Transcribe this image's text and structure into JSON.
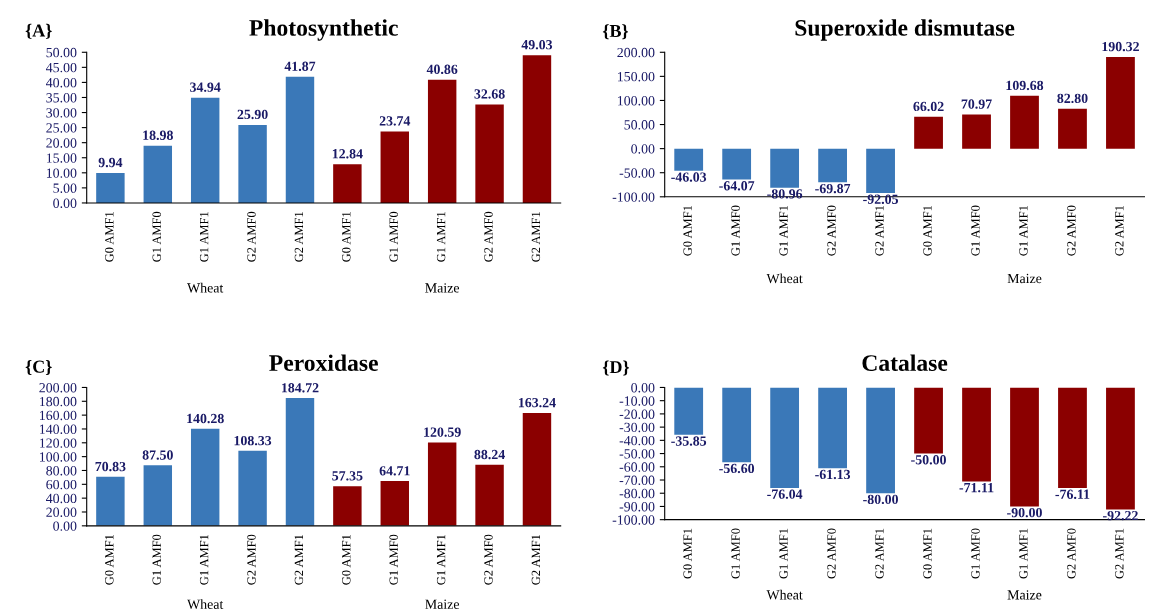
{
  "chart_data": [
    {
      "type": "bar",
      "title": "Photosynthetic",
      "annotations": [
        "{A}",
        "Wheat",
        "Maize"
      ],
      "categories": [
        "G0 AMF1",
        "G1 AMF0",
        "G1 AMF1",
        "G2 AMF0",
        "G2 AMF1",
        "G0 AMF1",
        "G1 AMF0",
        "G1 AMF1",
        "G2 AMF0",
        "G2 AMF1"
      ],
      "values": [
        9.94,
        18.98,
        34.94,
        25.9,
        41.87,
        12.84,
        23.74,
        40.86,
        32.68,
        49.03
      ],
      "value_labels": [
        "9.94",
        "18.98",
        "34.94",
        "25.90",
        "41.87",
        "12.84",
        "23.74",
        "40.86",
        "32.68",
        "49.03"
      ],
      "colors": [
        "#3a78b8",
        "#3a78b8",
        "#3a78b8",
        "#3a78b8",
        "#3a78b8",
        "#8b0000",
        "#8b0000",
        "#8b0000",
        "#8b0000",
        "#8b0000"
      ],
      "ylim": [
        0,
        50
      ],
      "yticks": [
        {
          "value": 0,
          "label": "0.00"
        },
        {
          "value": 5,
          "label": "5.00"
        },
        {
          "value": 10,
          "label": "10.00"
        },
        {
          "value": 15,
          "label": "15.00"
        },
        {
          "value": 20,
          "label": "20.00"
        },
        {
          "value": 25,
          "label": "25.00"
        },
        {
          "value": 30,
          "label": "30.00"
        },
        {
          "value": 35,
          "label": "35.00"
        },
        {
          "value": 40,
          "label": "40.00"
        },
        {
          "value": 45,
          "label": "45.00"
        },
        {
          "value": 50,
          "label": "50.00"
        }
      ],
      "grid": false,
      "legend": false
    },
    {
      "type": "bar",
      "title": "Superoxide dismutase",
      "annotations": [
        "{B}",
        "Wheat",
        "Maize"
      ],
      "categories": [
        "G0 AMF1",
        "G1 AMF0",
        "G1 AMF1",
        "G2 AMF0",
        "G2 AMF1",
        "G0 AMF1",
        "G1 AMF0",
        "G1 AMF1",
        "G2 AMF0",
        "G2 AMF1"
      ],
      "values": [
        -46.03,
        -64.07,
        -80.96,
        -69.87,
        -92.05,
        66.02,
        70.97,
        109.68,
        82.8,
        190.32
      ],
      "value_labels": [
        "-46.03",
        "-64.07",
        "-80.96",
        "-69.87",
        "-92.05",
        "66.02",
        "70.97",
        "109.68",
        "82.80",
        "190.32"
      ],
      "colors": [
        "#3a78b8",
        "#3a78b8",
        "#3a78b8",
        "#3a78b8",
        "#3a78b8",
        "#8b0000",
        "#8b0000",
        "#8b0000",
        "#8b0000",
        "#8b0000"
      ],
      "ylim": [
        -100,
        200
      ],
      "yticks": [
        {
          "value": -100,
          "label": "-100.00"
        },
        {
          "value": -50,
          "label": "-50.00"
        },
        {
          "value": 0,
          "label": "0.00"
        },
        {
          "value": 50,
          "label": "50.00"
        },
        {
          "value": 100,
          "label": "100.00"
        },
        {
          "value": 150,
          "label": "150.00"
        },
        {
          "value": 200,
          "label": "200.00"
        }
      ],
      "grid": false,
      "legend": false
    },
    {
      "type": "bar",
      "title": "Peroxidase",
      "annotations": [
        "{C}",
        "Wheat",
        "Maize"
      ],
      "categories": [
        "G0 AMF1",
        "G1 AMF0",
        "G1 AMF1",
        "G2 AMF0",
        "G2 AMF1",
        "G0 AMF1",
        "G1 AMF0",
        "G1 AMF1",
        "G2 AMF0",
        "G2 AMF1"
      ],
      "values": [
        70.83,
        87.5,
        140.28,
        108.33,
        184.72,
        57.35,
        64.71,
        120.59,
        88.24,
        163.24
      ],
      "value_labels": [
        "70.83",
        "87.50",
        "140.28",
        "108.33",
        "184.72",
        "57.35",
        "64.71",
        "120.59",
        "88.24",
        "163.24"
      ],
      "colors": [
        "#3a78b8",
        "#3a78b8",
        "#3a78b8",
        "#3a78b8",
        "#3a78b8",
        "#8b0000",
        "#8b0000",
        "#8b0000",
        "#8b0000",
        "#8b0000"
      ],
      "ylim": [
        0,
        200
      ],
      "yticks": [
        {
          "value": 0,
          "label": "0.00"
        },
        {
          "value": 20,
          "label": "20.00"
        },
        {
          "value": 40,
          "label": "40.00"
        },
        {
          "value": 60,
          "label": "60.00"
        },
        {
          "value": 80,
          "label": "80.00"
        },
        {
          "value": 100,
          "label": "100.00"
        },
        {
          "value": 120,
          "label": "120.00"
        },
        {
          "value": 140,
          "label": "140.00"
        },
        {
          "value": 160,
          "label": "160.00"
        },
        {
          "value": 180,
          "label": "180.00"
        },
        {
          "value": 200,
          "label": "200.00"
        }
      ],
      "grid": false,
      "legend": false
    },
    {
      "type": "bar",
      "title": "Catalase",
      "annotations": [
        "{D}",
        "Wheat",
        "Maize"
      ],
      "categories": [
        "G0 AMF1",
        "G1 AMF0",
        "G1 AMF1",
        "G2 AMF0",
        "G2 AMF1",
        "G0 AMF1",
        "G1 AMF0",
        "G1 AMF1",
        "G2 AMF0",
        "G2 AMF1"
      ],
      "values": [
        -35.85,
        -56.6,
        -76.04,
        -61.13,
        -80.0,
        -50.0,
        -71.11,
        -90.0,
        -76.11,
        -92.22
      ],
      "value_labels": [
        "-35.85",
        "-56.60",
        "-76.04",
        "-61.13",
        "-80.00",
        "-50.00",
        "-71.11",
        "-90.00",
        "-76.11",
        "-92.22"
      ],
      "colors": [
        "#3a78b8",
        "#3a78b8",
        "#3a78b8",
        "#3a78b8",
        "#3a78b8",
        "#8b0000",
        "#8b0000",
        "#8b0000",
        "#8b0000",
        "#8b0000"
      ],
      "ylim": [
        -100,
        0
      ],
      "yticks": [
        {
          "value": -100,
          "label": "-100.00"
        },
        {
          "value": -90,
          "label": "-90.00"
        },
        {
          "value": -80,
          "label": "-80.00"
        },
        {
          "value": -70,
          "label": "-70.00"
        },
        {
          "value": -60,
          "label": "-60.00"
        },
        {
          "value": -50,
          "label": "-50.00"
        },
        {
          "value": -40,
          "label": "-40.00"
        },
        {
          "value": -30,
          "label": "-30.00"
        },
        {
          "value": -20,
          "label": "-20.00"
        },
        {
          "value": -10,
          "label": "-10.00"
        },
        {
          "value": 0,
          "label": "0.00"
        }
      ],
      "grid": false,
      "legend": false
    }
  ]
}
